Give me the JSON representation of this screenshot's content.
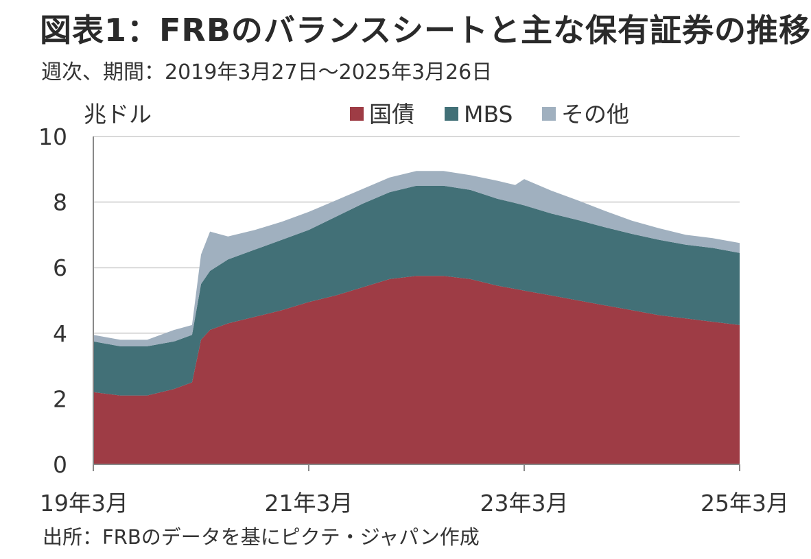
{
  "title": "図表1：FRBのバランスシートと主な保有証券の推移",
  "subtitle": "週次、期間：2019年3月27日～2025年3月26日",
  "source": "出所：FRBのデータを基にピクテ・ジャパン作成",
  "chart_data": {
    "type": "area",
    "stacked": true,
    "ylabel": "兆ドル",
    "ylim": [
      0,
      10
    ],
    "yticks": [
      "0",
      "2",
      "4",
      "6",
      "8",
      "10"
    ],
    "xlim": [
      "2019-03",
      "2025-03"
    ],
    "xtick_labels": [
      "19年3月",
      "21年3月",
      "23年3月",
      "25年3月"
    ],
    "legend_position": "top",
    "grid": "horizontal",
    "x": [
      "2019-03",
      "2019-06",
      "2019-09",
      "2019-12",
      "2020-02",
      "2020-03",
      "2020-04",
      "2020-06",
      "2020-09",
      "2020-12",
      "2021-03",
      "2021-06",
      "2021-09",
      "2021-12",
      "2022-03",
      "2022-06",
      "2022-09",
      "2022-12",
      "2023-02",
      "2023-03",
      "2023-06",
      "2023-09",
      "2023-12",
      "2024-03",
      "2024-06",
      "2024-09",
      "2024-12",
      "2025-03"
    ],
    "series": [
      {
        "name": "国債",
        "color": "#9e3c45",
        "values": [
          2.2,
          2.1,
          2.1,
          2.3,
          2.5,
          3.8,
          4.1,
          4.3,
          4.5,
          4.7,
          4.95,
          5.15,
          5.4,
          5.65,
          5.75,
          5.75,
          5.65,
          5.45,
          5.35,
          5.3,
          5.15,
          5.0,
          4.85,
          4.7,
          4.55,
          4.45,
          4.35,
          4.25
        ]
      },
      {
        "name": "MBS",
        "color": "#427077",
        "values": [
          1.55,
          1.5,
          1.5,
          1.45,
          1.45,
          1.7,
          1.8,
          1.95,
          2.05,
          2.15,
          2.2,
          2.4,
          2.55,
          2.65,
          2.75,
          2.75,
          2.72,
          2.65,
          2.62,
          2.6,
          2.5,
          2.45,
          2.38,
          2.33,
          2.3,
          2.25,
          2.25,
          2.2
        ]
      },
      {
        "name": "その他",
        "color": "#a0b0bf",
        "values": [
          0.2,
          0.2,
          0.2,
          0.35,
          0.3,
          0.9,
          1.2,
          0.7,
          0.6,
          0.55,
          0.55,
          0.5,
          0.45,
          0.45,
          0.45,
          0.45,
          0.45,
          0.55,
          0.55,
          0.8,
          0.7,
          0.6,
          0.5,
          0.4,
          0.35,
          0.3,
          0.3,
          0.3
        ]
      }
    ]
  }
}
